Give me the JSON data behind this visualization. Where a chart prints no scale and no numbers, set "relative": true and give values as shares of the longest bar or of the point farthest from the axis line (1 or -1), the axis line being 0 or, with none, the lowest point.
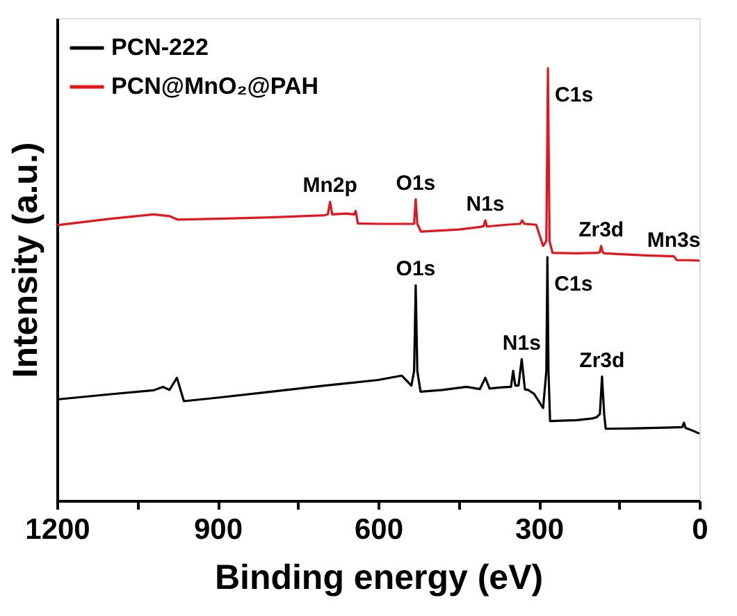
{
  "chart_data": {
    "type": "line",
    "xlabel": "Binding energy (eV)",
    "ylabel": "Intensity (a.u.)",
    "relative": true,
    "xlim": [
      1200,
      0
    ],
    "xticks": [
      1200,
      {
        "value": 1050,
        "label": null
      },
      900,
      {
        "value": 750,
        "label": null
      },
      600,
      {
        "value": 450,
        "label": null
      },
      300,
      {
        "value": 150,
        "label": null
      },
      0
    ],
    "tick_labels": "x",
    "grid": false,
    "legend": "top left",
    "marker": "none",
    "line_style": "solid",
    "series": [
      {
        "name": "PCN-222",
        "color": "#000000",
        "x": [
          1200,
          1100,
          1020,
          1002,
          990,
          976,
          963,
          900,
          800,
          700,
          600,
          556,
          538,
          533,
          530,
          527,
          521,
          480,
          435,
          410,
          400,
          392,
          370,
          352,
          348,
          344,
          338,
          332,
          326,
          320,
          309,
          292,
          286,
          284,
          282,
          279,
          230,
          200,
          192,
          186,
          182,
          178,
          175,
          120,
          54,
          32,
          29,
          26,
          15,
          0
        ],
        "values": [
          0.234,
          0.246,
          0.255,
          0.263,
          0.256,
          0.284,
          0.23,
          0.238,
          0.252,
          0.266,
          0.279,
          0.289,
          0.266,
          0.3,
          0.498,
          0.3,
          0.252,
          0.256,
          0.263,
          0.258,
          0.284,
          0.259,
          0.262,
          0.263,
          0.3,
          0.266,
          0.266,
          0.327,
          0.257,
          0.256,
          0.247,
          0.214,
          0.3,
          0.563,
          0.3,
          0.184,
          0.186,
          0.19,
          0.193,
          0.2,
          0.287,
          0.2,
          0.166,
          0.167,
          0.169,
          0.17,
          0.18,
          0.168,
          0.163,
          0.155
        ]
      },
      {
        "name": "PCN@MnO₂@PAH",
        "color": "#e8141c",
        "x": [
          1200,
          1100,
          1020,
          990,
          975,
          900,
          800,
          700,
          694,
          690,
          686,
          660,
          645,
          642,
          638,
          600,
          540,
          533,
          530,
          527,
          520,
          450,
          409,
          403,
          400,
          397,
          360,
          335,
          331,
          327,
          305,
          292,
          286,
          283,
          280,
          274.5,
          230,
          190,
          186,
          183.6,
          181,
          178,
          100,
          48,
          42,
          20,
          0
        ],
        "values": [
          0.637,
          0.652,
          0.662,
          0.658,
          0.65,
          0.652,
          0.655,
          0.66,
          0.662,
          0.691,
          0.662,
          0.664,
          0.662,
          0.67,
          0.641,
          0.64,
          0.64,
          0.64,
          0.697,
          0.64,
          0.622,
          0.627,
          0.633,
          0.635,
          0.648,
          0.634,
          0.638,
          0.64,
          0.648,
          0.64,
          0.638,
          0.589,
          0.6,
          1.0,
          0.6,
          0.573,
          0.572,
          0.573,
          0.575,
          0.589,
          0.575,
          0.572,
          0.567,
          0.565,
          0.556,
          0.556,
          0.555
        ]
      }
    ],
    "annotations": [
      {
        "text": "Mn2p",
        "x": 690,
        "y": 0.691
      },
      {
        "text": "O1s",
        "x": 530,
        "y": 0.697
      },
      {
        "text": "N1s",
        "x": 400,
        "y": 0.648
      },
      {
        "text": "C1s",
        "x": 283,
        "y": 1.0
      },
      {
        "text": "Zr3d",
        "x": 183.6,
        "y": 0.589
      },
      {
        "text": "Mn3s",
        "x": 48,
        "y": 0.565
      },
      {
        "text": "O1s",
        "x": 530,
        "y": 0.498
      },
      {
        "text": "C1s",
        "x": 284,
        "y": 0.563
      },
      {
        "text": "N1s",
        "x": 332,
        "y": 0.327
      },
      {
        "text": "Zr3d",
        "x": 182,
        "y": 0.287
      }
    ]
  }
}
